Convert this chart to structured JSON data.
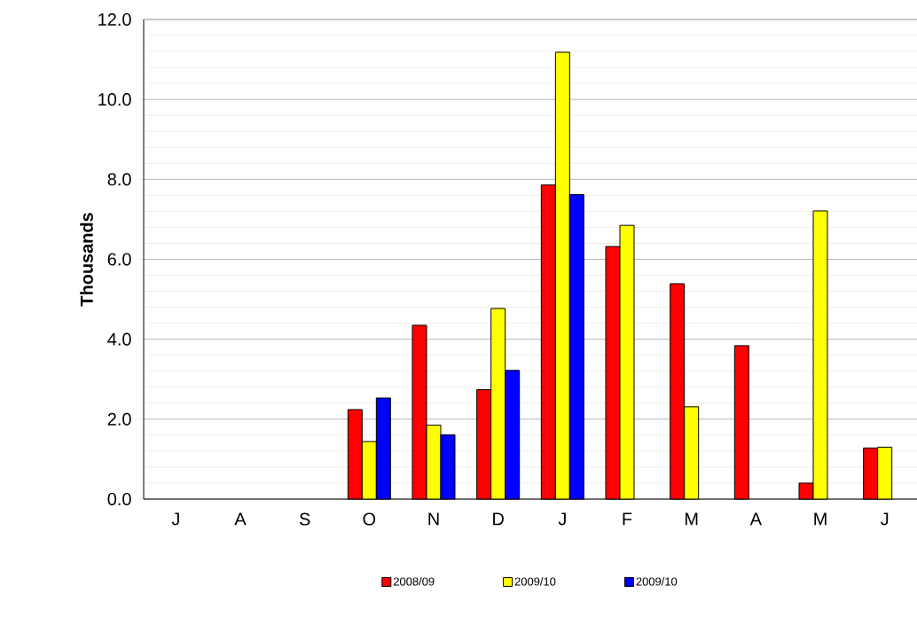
{
  "chart_data": {
    "type": "bar",
    "ylabel": "Thousands",
    "categories": [
      "J",
      "A",
      "S",
      "O",
      "N",
      "D",
      "J",
      "F",
      "M",
      "A",
      "M",
      "J"
    ],
    "series": [
      {
        "name": "2008/09",
        "color": "#ff0000",
        "values": [
          null,
          null,
          null,
          2.24,
          4.35,
          2.74,
          7.86,
          6.32,
          5.39,
          3.84,
          0.4,
          1.28
        ]
      },
      {
        "name": "2009/10",
        "color": "#ffff00",
        "values": [
          null,
          null,
          null,
          1.44,
          1.85,
          4.77,
          11.18,
          6.85,
          2.31,
          null,
          7.21,
          1.3
        ]
      },
      {
        "name": "2009/10",
        "color": "#0000ff",
        "values": [
          null,
          null,
          null,
          2.53,
          1.61,
          3.22,
          7.62,
          null,
          null,
          null,
          null,
          null
        ]
      }
    ],
    "ylim": [
      0,
      12
    ],
    "yticks": [
      {
        "value": 0,
        "label": "0.0"
      },
      {
        "value": 2,
        "label": "2.0"
      },
      {
        "value": 4,
        "label": "4.0"
      },
      {
        "value": 6,
        "label": "6.0"
      },
      {
        "value": 8,
        "label": "8.0"
      },
      {
        "value": 10,
        "label": "10.0"
      },
      {
        "value": 12,
        "label": "12.0"
      }
    ],
    "grid": "y",
    "legend": "bottom"
  }
}
